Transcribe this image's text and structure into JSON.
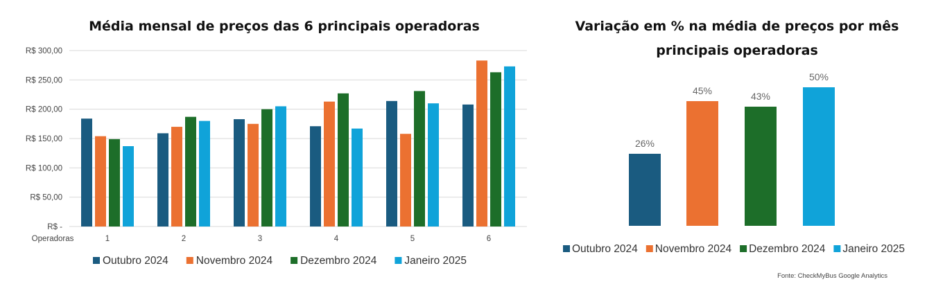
{
  "colors": {
    "outubro": "#1a5b80",
    "novembro": "#eb7131",
    "dezembro": "#1d6e29",
    "janeiro": "#10a3d9",
    "grid": "#d9d9d9"
  },
  "chart_data": [
    {
      "type": "bar",
      "title": "Média mensal de preços das 6 principais operadoras",
      "xlabel": "Operadoras",
      "ylabel": "",
      "ylim": [
        0,
        300
      ],
      "ytick_values": [
        0,
        50,
        100,
        150,
        200,
        250,
        300
      ],
      "ytick_labels": [
        "R$ -",
        "R$ 50,00",
        "R$ 100,00",
        "R$ 150,00",
        "R$ 200,00",
        "R$ 250,00",
        "R$ 300,00"
      ],
      "grid": true,
      "legend_position": "bottom",
      "categories": [
        "1",
        "2",
        "3",
        "4",
        "5",
        "6"
      ],
      "series": [
        {
          "name": "Outubro 2024",
          "color_key": "outubro",
          "values": [
            184,
            159,
            183,
            171,
            214,
            208
          ]
        },
        {
          "name": "Novembro 2024",
          "color_key": "novembro",
          "values": [
            154,
            170,
            175,
            213,
            158,
            283
          ]
        },
        {
          "name": "Dezembro 2024",
          "color_key": "dezembro",
          "values": [
            149,
            187,
            200,
            227,
            231,
            263
          ]
        },
        {
          "name": "Janeiro 2025",
          "color_key": "janeiro",
          "values": [
            137,
            180,
            205,
            167,
            210,
            273
          ]
        }
      ]
    },
    {
      "type": "bar",
      "title": "Variação em % na média de preços por mês",
      "subtitle": "principais operadoras",
      "ylim": [
        0,
        60
      ],
      "grid": false,
      "legend_position": "bottom",
      "categories": [
        "Outubro 2024",
        "Novembro 2024",
        "Dezembro 2024",
        "Janeiro 2025"
      ],
      "values": [
        26,
        45,
        43,
        50
      ],
      "value_labels": [
        "26%",
        "45%",
        "43%",
        "50%"
      ],
      "color_keys": [
        "outubro",
        "novembro",
        "dezembro",
        "janeiro"
      ],
      "source": "Fonte: CheckMyBus Google Analytics"
    }
  ]
}
